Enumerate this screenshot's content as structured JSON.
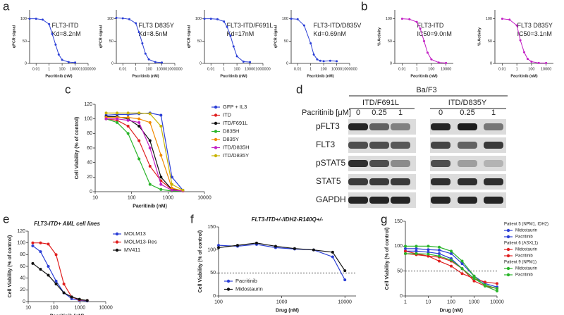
{
  "panel_letters": [
    "a",
    "b",
    "c",
    "d",
    "e",
    "f",
    "g"
  ],
  "chart_data": [
    {
      "type": "line",
      "xlog": true,
      "xlim": [
        0.001,
        1000000
      ],
      "xticks": [
        0.01,
        1,
        100,
        10000,
        1000000
      ],
      "ylim": [
        0,
        120
      ],
      "yticks": [
        0,
        50,
        100
      ],
      "xlabel": "Pacritinib (nM)",
      "ylabel": "qPCR signal",
      "annotations": [
        "FLT3-ITD",
        "Kd=8.2nM"
      ],
      "x": [
        0.001,
        0.01,
        0.1,
        1,
        3,
        10,
        30,
        100,
        1000,
        10000
      ],
      "series": [
        {
          "color": "#2b3fd6",
          "values": [
            100,
            100,
            98,
            88,
            66,
            42,
            20,
            8,
            3,
            2
          ]
        }
      ]
    },
    {
      "type": "line",
      "xlog": true,
      "xlim": [
        0.001,
        1000000
      ],
      "xticks": [
        0.01,
        1,
        100,
        10000,
        1000000
      ],
      "ylim": [
        0,
        120
      ],
      "yticks": [
        0,
        50,
        100
      ],
      "xlabel": "Pacritinib (nM)",
      "ylabel": "qPCR signal",
      "annotations": [
        "FLT3 D835Y",
        "Kd=8.5nM"
      ],
      "x": [
        0.001,
        0.01,
        0.1,
        1,
        3,
        10,
        30,
        100,
        1000,
        10000
      ],
      "series": [
        {
          "color": "#2b3fd6",
          "values": [
            102,
            101,
            99,
            90,
            70,
            45,
            22,
            9,
            3,
            2
          ]
        }
      ]
    },
    {
      "type": "line",
      "xlog": true,
      "xlim": [
        0.001,
        1000000
      ],
      "xticks": [
        0.01,
        1,
        100,
        10000,
        1000000
      ],
      "ylim": [
        0,
        120
      ],
      "yticks": [
        0,
        50,
        100
      ],
      "xlabel": "Pacritinib (nM)",
      "ylabel": "qPCR signal",
      "annotations": [
        "FLT3-ITD/F691L",
        "Kd=17nM"
      ],
      "x": [
        0.001,
        0.01,
        0.1,
        1,
        3,
        10,
        30,
        100,
        1000,
        10000
      ],
      "series": [
        {
          "color": "#2b3fd6",
          "values": [
            100,
            100,
            99,
            94,
            82,
            62,
            38,
            16,
            4,
            3
          ]
        }
      ]
    },
    {
      "type": "line",
      "xlog": true,
      "xlim": [
        0.001,
        1000000
      ],
      "xticks": [
        0.01,
        1,
        100,
        10000,
        1000000
      ],
      "ylim": [
        0,
        120
      ],
      "yticks": [
        0,
        50,
        100
      ],
      "xlabel": "Pacritinib (nM)",
      "ylabel": "qPCR signal",
      "annotations": [
        "FLT3-ITD/D835V",
        "Kd=0.69nM"
      ],
      "x": [
        0.001,
        0.01,
        0.1,
        1,
        3,
        10,
        30,
        100,
        1000,
        10000
      ],
      "series": [
        {
          "color": "#2b3fd6",
          "values": [
            100,
            99,
            85,
            45,
            20,
            9,
            6,
            5,
            6,
            5
          ]
        }
      ]
    },
    {
      "type": "line",
      "xlog": true,
      "xlim": [
        0.001,
        100000
      ],
      "xticks": [
        0.01,
        1,
        100,
        10000
      ],
      "ylim": [
        0,
        120
      ],
      "yticks": [
        0,
        50,
        100
      ],
      "xlabel": "Pacritinib (nM)",
      "ylabel": "% Activity",
      "annotations": [
        "FLT3-ITD",
        "IC50=9.0nM"
      ],
      "x": [
        0.01,
        0.1,
        1,
        3,
        10,
        30,
        100,
        1000,
        10000
      ],
      "series": [
        {
          "color": "#c21fc4",
          "values": [
            100,
            99,
            93,
            78,
            50,
            24,
            9,
            2,
            1
          ]
        }
      ]
    },
    {
      "type": "line",
      "xlog": true,
      "xlim": [
        0.001,
        100000
      ],
      "xticks": [
        0.01,
        1,
        100,
        10000
      ],
      "ylim": [
        0,
        120
      ],
      "yticks": [
        0,
        50,
        100
      ],
      "xlabel": "Pacritinib (nM)",
      "ylabel": "% Activity",
      "annotations": [
        "FLT3 D835Y",
        "IC50=3.1nM"
      ],
      "x": [
        0.01,
        0.1,
        1,
        3,
        10,
        30,
        100,
        1000,
        10000
      ],
      "series": [
        {
          "color": "#c21fc4",
          "values": [
            100,
            98,
            85,
            52,
            25,
            10,
            4,
            1,
            1
          ]
        }
      ]
    },
    {
      "type": "line",
      "xlog": true,
      "xlim": [
        10,
        10000
      ],
      "xticks": [
        10,
        100,
        1000,
        10000
      ],
      "ylim": [
        0,
        120
      ],
      "yticks": [
        0,
        20,
        40,
        60,
        80,
        100,
        120
      ],
      "xlabel": "Pacritinib (nM)",
      "ylabel": "Cell Viability (% of control)",
      "legend": "right",
      "x": [
        20,
        40,
        80,
        160,
        320,
        640,
        1280,
        2560
      ],
      "series": [
        {
          "name": "GFP + IL3",
          "color": "#2b3fd6",
          "values": [
            105,
            106,
            106,
            107,
            108,
            105,
            20,
            2
          ]
        },
        {
          "name": "ITD",
          "color": "#e02020",
          "values": [
            100,
            98,
            90,
            70,
            35,
            15,
            3,
            1
          ]
        },
        {
          "name": "ITD/F691L",
          "color": "#111111",
          "values": [
            103,
            103,
            100,
            90,
            70,
            20,
            3,
            1
          ]
        },
        {
          "name": "D835H",
          "color": "#2ab52a",
          "values": [
            100,
            95,
            80,
            45,
            10,
            3,
            1,
            1
          ]
        },
        {
          "name": "D835Y",
          "color": "#f08a00",
          "values": [
            102,
            102,
            102,
            100,
            95,
            50,
            5,
            1
          ]
        },
        {
          "name": "ITD/D835H",
          "color": "#c21fc4",
          "values": [
            100,
            100,
            98,
            95,
            60,
            10,
            2,
            1
          ]
        },
        {
          "name": "ITD/D835Y",
          "color": "#c8b400",
          "values": [
            108,
            108,
            108,
            108,
            107,
            90,
            10,
            2
          ]
        }
      ]
    },
    {
      "type": "line",
      "xlog": true,
      "xlim": [
        10,
        10000
      ],
      "xticks": [
        10,
        100,
        1000,
        10000
      ],
      "ylim": [
        0,
        120
      ],
      "yticks": [
        0,
        20,
        40,
        60,
        80,
        100,
        120
      ],
      "xlabel": "Pacritinib (nM)",
      "ylabel": "Cell Viability (% of control)",
      "title": "FLT3-ITD+ AML cell lines",
      "legend": "right",
      "x": [
        15,
        30,
        60,
        120,
        240,
        480,
        960,
        1920
      ],
      "series": [
        {
          "name": "MOLM13",
          "color": "#2b3fd6",
          "values": [
            95,
            85,
            60,
            35,
            15,
            5,
            2,
            1
          ]
        },
        {
          "name": "MOLM13-Res",
          "color": "#e02020",
          "values": [
            100,
            100,
            98,
            80,
            30,
            8,
            3,
            2
          ]
        },
        {
          "name": "MV411",
          "color": "#111111",
          "values": [
            65,
            55,
            45,
            30,
            15,
            8,
            4,
            2
          ]
        }
      ]
    },
    {
      "type": "line",
      "xlog": true,
      "xlim": [
        100,
        15000
      ],
      "xticks": [
        100,
        1000,
        10000
      ],
      "ylim": [
        0,
        150
      ],
      "yticks": [
        0,
        50,
        100,
        150
      ],
      "xlabel": "Drug (nM)",
      "ylabel": "Cell Viability (% of control)",
      "title": "FLT3-ITD+/-/IDH2-R140Q+/-",
      "hline": 50,
      "legend": "lower-left",
      "x": [
        100,
        200,
        400,
        800,
        1600,
        3200,
        6400,
        10000
      ],
      "series": [
        {
          "name": "Pacritinib",
          "color": "#2b3fd6",
          "values": [
            110,
            108,
            112,
            105,
            102,
            100,
            85,
            35
          ]
        },
        {
          "name": "Midostaurin",
          "color": "#111111",
          "values": [
            105,
            110,
            115,
            108,
            103,
            100,
            95,
            55
          ]
        }
      ]
    },
    {
      "type": "line",
      "xlog": true,
      "xlim": [
        1,
        10000
      ],
      "xticks": [
        1,
        10,
        100,
        1000,
        10000
      ],
      "ylim": [
        0,
        150
      ],
      "yticks": [
        0,
        50,
        100,
        150
      ],
      "xlabel": "Drug (nM)",
      "ylabel": "Cell Viability (% of control)",
      "hline": 50,
      "legend": "right",
      "legend_groups": [
        "Patient 5 (NPM1, IDH2)",
        "Patient 6 (ASXL1)",
        "Patient 9 (NPM1)"
      ],
      "x": [
        1,
        3,
        10,
        30,
        100,
        300,
        1000,
        3000,
        10000
      ],
      "series": [
        {
          "name": "Midostaurin",
          "group": 0,
          "color": "#2b3fd6",
          "values": [
            90,
            90,
            88,
            85,
            75,
            55,
            35,
            22,
            15
          ]
        },
        {
          "name": "Pacritinib",
          "group": 0,
          "color": "#2b3fd6",
          "values": [
            95,
            95,
            93,
            92,
            85,
            65,
            40,
            25,
            18
          ]
        },
        {
          "name": "Midostaurin",
          "group": 1,
          "color": "#e02020",
          "values": [
            90,
            85,
            80,
            70,
            60,
            45,
            35,
            28,
            25
          ]
        },
        {
          "name": "Pacritinib",
          "group": 1,
          "color": "#e02020",
          "values": [
            85,
            83,
            80,
            78,
            70,
            55,
            30,
            20,
            15
          ]
        },
        {
          "name": "Midostaurin",
          "group": 2,
          "color": "#2ab52a",
          "values": [
            100,
            100,
            100,
            98,
            90,
            70,
            40,
            20,
            10
          ]
        },
        {
          "name": "Pacritinib",
          "group": 2,
          "color": "#2ab52a",
          "values": [
            85,
            85,
            84,
            80,
            72,
            55,
            35,
            22,
            15
          ]
        }
      ]
    }
  ],
  "blot": {
    "header": "Ba/F3",
    "groups": [
      "ITD/F691L",
      "ITD/D835Y"
    ],
    "dose_label": "Pacritinib [μM]",
    "doses": [
      "0",
      "0.25",
      "1",
      "0",
      "0.25",
      "1"
    ],
    "rows": [
      "pFLT3",
      "FLT3",
      "pSTAT5",
      "STAT5",
      "GAPDH"
    ]
  }
}
